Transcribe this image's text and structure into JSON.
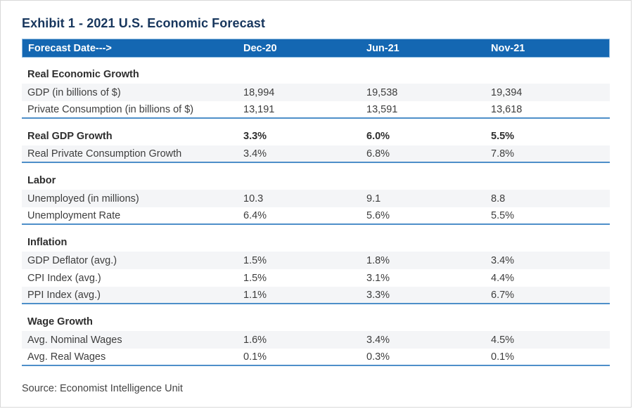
{
  "title": "Exhibit 1 - 2021 U.S. Economic Forecast",
  "source": "Source: Economist Intelligence Unit",
  "colors": {
    "title_navy": "#17365d",
    "header_bar_blue": "#1467b2",
    "header_bar_border": "#8fbadf",
    "section_underline_blue": "#4e8fc9",
    "stripe_gray": "#f4f5f7",
    "body_text": "#3d3d3d"
  },
  "table": {
    "header": {
      "label": "Forecast Date--->",
      "columns": [
        "Dec-20",
        "Jun-21",
        "Nov-21"
      ]
    },
    "sections": [
      {
        "heading": "Real Economic Growth",
        "heading_values": null,
        "rows": [
          {
            "label": "GDP (in billions of $)",
            "values": [
              "18,994",
              "19,538",
              "19,394"
            ]
          },
          {
            "label": "Private Consumption (in billions of $)",
            "values": [
              "13,191",
              "13,591",
              "13,618"
            ]
          }
        ]
      },
      {
        "heading": "Real GDP Growth",
        "heading_values": [
          "3.3%",
          "6.0%",
          "5.5%"
        ],
        "rows": [
          {
            "label": "Real Private Consumption Growth",
            "values": [
              "3.4%",
              "6.8%",
              "7.8%"
            ]
          }
        ]
      },
      {
        "heading": "Labor",
        "heading_values": null,
        "rows": [
          {
            "label": "Unemployed (in millions)",
            "values": [
              "10.3",
              "9.1",
              "8.8"
            ]
          },
          {
            "label": "Unemployment Rate",
            "values": [
              "6.4%",
              "5.6%",
              "5.5%"
            ]
          }
        ]
      },
      {
        "heading": "Inflation",
        "heading_values": null,
        "rows": [
          {
            "label": "GDP Deflator (avg.)",
            "values": [
              "1.5%",
              "1.8%",
              "3.4%"
            ]
          },
          {
            "label": "CPI Index (avg.)",
            "values": [
              "1.5%",
              "3.1%",
              "4.4%"
            ]
          },
          {
            "label": "PPI Index (avg.)",
            "values": [
              "1.1%",
              "3.3%",
              "6.7%"
            ]
          }
        ]
      },
      {
        "heading": "Wage Growth",
        "heading_values": null,
        "rows": [
          {
            "label": "Avg. Nominal Wages",
            "values": [
              "1.6%",
              "3.4%",
              "4.5%"
            ]
          },
          {
            "label": "Avg. Real Wages",
            "values": [
              "0.1%",
              "0.3%",
              "0.1%"
            ]
          }
        ]
      }
    ]
  }
}
